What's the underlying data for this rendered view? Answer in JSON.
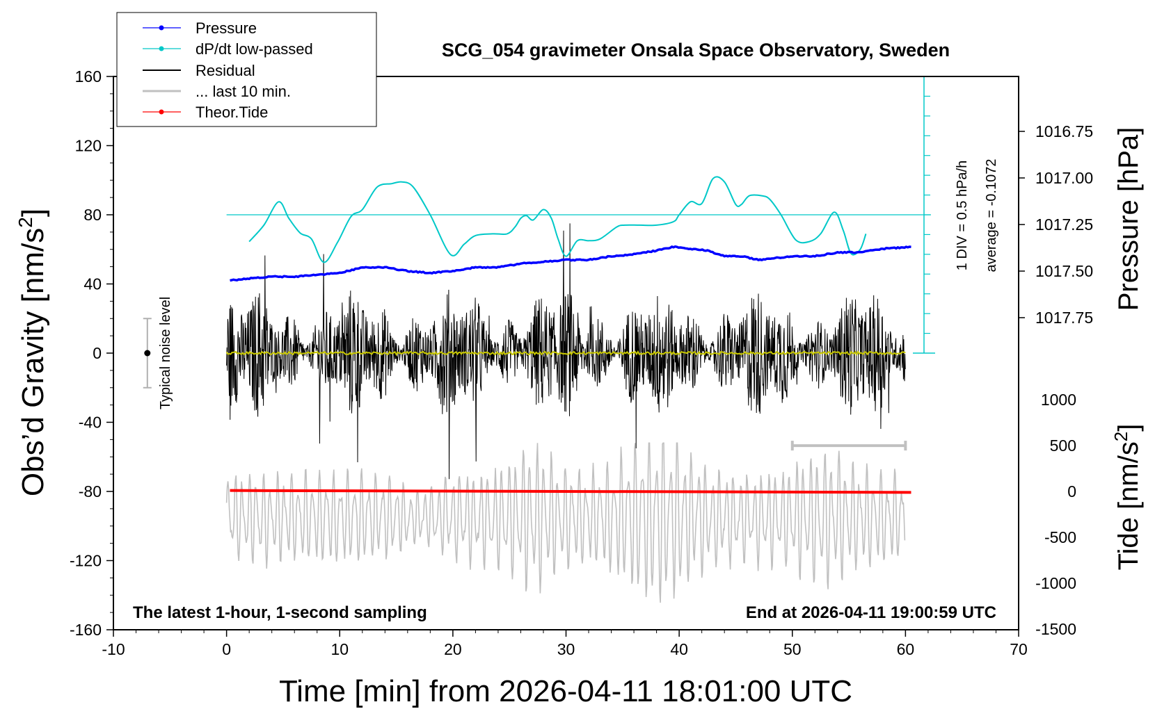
{
  "chart_data": {
    "type": "line",
    "title": "SCG_054 gravimeter Onsala Space Observatory, Sweden",
    "xlabel": "Time [min] from 2026-04-11 18:01:00 UTC",
    "ylabel": "Obs’d Gravity [nm/s²]",
    "ylabel_main": "Obs’d Gravity [nm/s",
    "ylabel_sup": "2",
    "ylabel_end": "]",
    "pressure_label": "Pressure [hPa]",
    "tide_label_main": "Tide [nm/s",
    "tide_label_sup": "2",
    "tide_label_end": "]",
    "xlim": [
      -10,
      70
    ],
    "ylim": [
      -160,
      160
    ],
    "x_ticks": [
      "-10",
      "0",
      "10",
      "20",
      "30",
      "40",
      "50",
      "60",
      "70"
    ],
    "y_ticks": [
      "160",
      "120",
      "80",
      "40",
      "0",
      "-40",
      "-80",
      "-120",
      "-160"
    ],
    "pressure_ticks": [
      "1017.75",
      "1017.50",
      "1017.25",
      "1017.00",
      "1016.75"
    ],
    "tide_ticks": [
      "1000",
      "500",
      "0",
      "-500",
      "-1000",
      "-1500"
    ],
    "bottom_left_note": "The latest 1-hour, 1-second sampling",
    "bottom_right_note": "End at 2026-04-11 19:00:59 UTC",
    "noise_label": "Typical noise level",
    "noise_range": [
      -20,
      20
    ],
    "dpdt_scale_note": "1 DIV = 0.5 hPa/h",
    "dpdt_average_note": "average = -0.1072",
    "grid": false,
    "legend_position": "top-left",
    "legend": [
      {
        "label": "Pressure",
        "color": "#0000ff",
        "marker": true
      },
      {
        "label": "dP/dt low-passed",
        "color": "#00c8c8",
        "marker": true
      },
      {
        "label": "Residual",
        "color": "#000000",
        "marker": false
      },
      {
        "label": "... last 10 min.",
        "color": "#c0c0c0",
        "marker": false
      },
      {
        "label": "Theor.Tide",
        "color": "#ff0000",
        "marker": true
      }
    ],
    "series": [
      {
        "name": "Pressure",
        "color": "#0000ff",
        "unit": "hPa",
        "x": [
          0.3,
          2,
          4,
          6,
          8,
          10,
          12,
          14,
          16,
          18,
          20,
          22,
          24,
          26,
          28,
          30,
          32,
          34,
          36,
          38,
          39.5,
          41,
          42.5,
          44,
          45.5,
          47,
          48.5,
          50,
          52,
          54,
          56,
          58,
          60.5
        ],
        "values": [
          1017.55,
          1017.54,
          1017.53,
          1017.53,
          1017.52,
          1017.51,
          1017.48,
          1017.48,
          1017.5,
          1017.51,
          1017.5,
          1017.48,
          1017.48,
          1017.46,
          1017.45,
          1017.44,
          1017.44,
          1017.42,
          1017.41,
          1017.39,
          1017.37,
          1017.38,
          1017.39,
          1017.42,
          1017.42,
          1017.44,
          1017.43,
          1017.42,
          1017.42,
          1017.4,
          1017.4,
          1017.38,
          1017.37
        ]
      },
      {
        "name": "dP/dt low-passed",
        "color": "#00c8c8",
        "zero_level": 80,
        "x": [
          2,
          3.3,
          4.6,
          5.5,
          6.5,
          7.5,
          8.6,
          9.8,
          11,
          12,
          13.3,
          14.6,
          15.5,
          16.5,
          18,
          19.8,
          21,
          22,
          23.5,
          24.8,
          25.5,
          26,
          26.5,
          27.1,
          28,
          28.7,
          29.3,
          30,
          31,
          32,
          33,
          34.5,
          35.2,
          36.5,
          38,
          39.5,
          40,
          41,
          42,
          43,
          44,
          45,
          45.5,
          46.2,
          47.3,
          48,
          49,
          50.3,
          51.5,
          52.5,
          53.7,
          54.5,
          55.2,
          56,
          56.5
        ],
        "values": [
          64.5,
          74,
          87.5,
          78,
          69.5,
          66,
          52.5,
          64,
          79,
          83,
          96,
          98,
          99,
          96,
          80,
          57,
          63,
          68,
          69,
          69,
          73,
          78,
          79.5,
          77,
          83,
          78,
          66,
          56,
          65,
          65,
          66,
          73,
          74,
          74,
          74,
          76,
          80,
          87.5,
          86.5,
          101,
          99,
          86,
          86,
          91,
          91,
          89,
          80,
          65.5,
          64.5,
          69,
          81.5,
          71,
          57.5,
          60,
          69
        ]
      },
      {
        "name": "Residual",
        "color": "#000000",
        "x_range": [
          0,
          60
        ],
        "typical_range": [
          -40,
          40
        ],
        "extremes": [
          -76,
          75
        ],
        "mean": 0
      },
      {
        "name": "... last 10 min.",
        "color": "#c0c0c0",
        "x_range": [
          0,
          60
        ],
        "scale_bar_range": [
          50,
          60
        ],
        "typical_range": [
          -140,
          -55
        ]
      },
      {
        "name": "Theor.Tide",
        "color": "#ff0000",
        "unit": "nm/s²",
        "x": [
          0.3,
          60.5
        ],
        "values": [
          10,
          -10
        ]
      }
    ]
  }
}
